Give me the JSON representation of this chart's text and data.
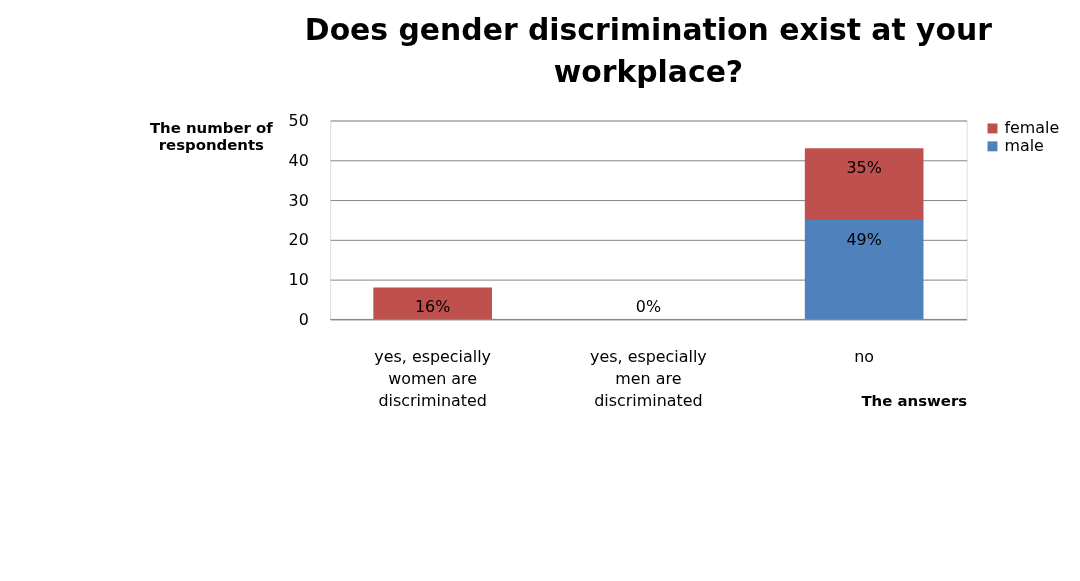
{
  "chart_data": {
    "type": "bar",
    "stacked": true,
    "title": "Does gender discrimination exist at your workplace?",
    "ylabel": "The number of respondents",
    "xlabel": "The answers",
    "categories": [
      "yes, especially women are discriminated",
      "yes, especially men are discriminated",
      "no"
    ],
    "series": [
      {
        "name": "male",
        "color": "#4f81bd",
        "values": [
          0,
          0,
          25
        ]
      },
      {
        "name": "female",
        "color": "#c0504d",
        "values": [
          8,
          0,
          18
        ]
      }
    ],
    "annotations": [
      {
        "text": "16%",
        "x": "yes, especially women are discriminated",
        "y": 8
      },
      {
        "text": "0%",
        "x": "yes, especially men are discriminated",
        "y": 0
      },
      {
        "text": "49%",
        "x": "no",
        "y": 25
      },
      {
        "text": "35%",
        "x": "no",
        "y": 43
      }
    ],
    "ylim": [
      0,
      50
    ],
    "yticks": [
      0,
      10,
      20,
      30,
      40,
      50
    ],
    "grid": "y",
    "legend": "right"
  }
}
